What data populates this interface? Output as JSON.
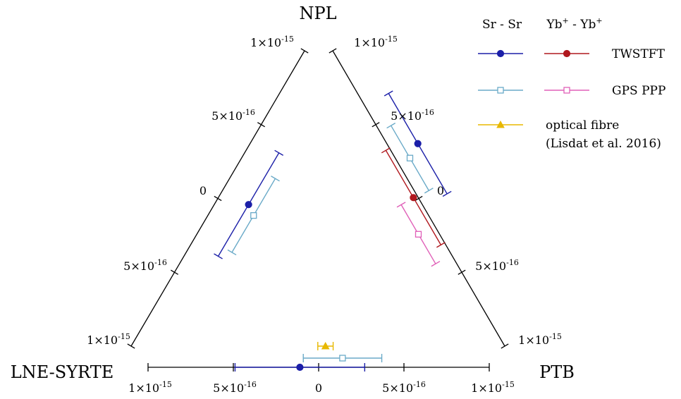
{
  "chart_data": {
    "type": "scatter",
    "title": "",
    "vertices": {
      "top": "NPL",
      "left": "LNE-SYRTE",
      "right": "PTB"
    },
    "axes": [
      {
        "name": "NPL-LNE-SYRTE",
        "range": [
          -1e-15,
          1e-15
        ],
        "tick_values": [
          -1e-15,
          -5e-16,
          0,
          5e-16,
          1e-15
        ],
        "tick_labels": [
          {
            "value": 1e-15,
            "mant": "1×10",
            "exp": "-15"
          },
          {
            "value": 5e-16,
            "mant": "5×10",
            "exp": "-16"
          },
          {
            "value": 0,
            "mant": "0",
            "exp": ""
          },
          {
            "value": -5e-16,
            "mant": "5×10",
            "exp": "-16"
          },
          {
            "value": -1e-15,
            "mant": "1×10",
            "exp": "-15"
          }
        ]
      },
      {
        "name": "NPL-PTB",
        "range": [
          -1e-15,
          1e-15
        ],
        "tick_values": [
          -1e-15,
          -5e-16,
          0,
          5e-16,
          1e-15
        ],
        "tick_labels": [
          {
            "value": 1e-15,
            "mant": "1×10",
            "exp": "-15"
          },
          {
            "value": 5e-16,
            "mant": "5×10",
            "exp": "-16"
          },
          {
            "value": 0,
            "mant": "0",
            "exp": ""
          },
          {
            "value": -5e-16,
            "mant": "5×10",
            "exp": "-16"
          },
          {
            "value": -1e-15,
            "mant": "1×10",
            "exp": "-15"
          }
        ]
      },
      {
        "name": "LNE-SYRTE-PTB",
        "range": [
          -1e-15,
          1e-15
        ],
        "tick_values": [
          -1e-15,
          -5e-16,
          0,
          5e-16,
          1e-15
        ],
        "tick_labels": [
          {
            "value": -1e-15,
            "mant": "1×10",
            "exp": "-15"
          },
          {
            "value": -5e-16,
            "mant": "5×10",
            "exp": "-16"
          },
          {
            "value": 0,
            "mant": "0",
            "exp": ""
          },
          {
            "value": 5e-16,
            "mant": "5×10",
            "exp": "-16"
          },
          {
            "value": 1e-15,
            "mant": "1×10",
            "exp": "-15"
          }
        ]
      }
    ],
    "series": [
      {
        "key": "srsr-twstft",
        "color": "#1b1fa8",
        "marker": "filled-circle",
        "points": [
          {
            "axis": "NPL-LNE-SYRTE",
            "value": 6e-17,
            "err": 3.5e-16
          },
          {
            "axis": "NPL-PTB",
            "value": -2.8e-16,
            "err": 3.4e-16
          },
          {
            "axis": "LNE-SYRTE-PTB",
            "value": -1.1e-16,
            "err": 3.8e-16
          }
        ]
      },
      {
        "key": "srsr-gpsppp",
        "color": "#6aaac8",
        "marker": "open-square",
        "points": [
          {
            "axis": "NPL-LNE-SYRTE",
            "value": 2e-17,
            "err": 2.5e-16
          },
          {
            "axis": "NPL-PTB",
            "value": -2.3e-16,
            "err": 2.2e-16
          },
          {
            "axis": "LNE-SYRTE-PTB",
            "value": 1.4e-16,
            "err": 2.3e-16
          }
        ]
      },
      {
        "key": "ybyb-twstft",
        "color": "#b0181e",
        "marker": "filled-circle",
        "points": [
          {
            "axis": "NPL-PTB",
            "value": -2e-17,
            "err": 3.2e-16
          }
        ]
      },
      {
        "key": "ybyb-gpsppp",
        "color": "#e060b8",
        "marker": "open-square",
        "points": [
          {
            "axis": "NPL-PTB",
            "value": 1.8e-16,
            "err": 2e-16
          }
        ]
      },
      {
        "key": "fibre",
        "color": "#e8b800",
        "marker": "filled-triangle",
        "points": [
          {
            "axis": "LNE-SYRTE-PTB",
            "value": 4e-17,
            "err": 4.5e-17
          }
        ]
      }
    ],
    "legend": {
      "placement": "top-right",
      "col_headers": [
        {
          "key": "srsr",
          "text": "Sr - Sr"
        },
        {
          "key": "ybyb",
          "base1": "Yb",
          "sup1": "+",
          "mid": " - Yb",
          "sup2": "+"
        }
      ],
      "rows": [
        {
          "label": "TWSTFT",
          "left": "srsr-twstft",
          "right": "ybyb-twstft"
        },
        {
          "label": "GPS PPP",
          "left": "srsr-gpsppp",
          "right": "ybyb-gpsppp"
        },
        {
          "label_lines": [
            "optical fibre",
            "(Lisdat et al. 2016)"
          ],
          "left": "fibre",
          "right": null
        }
      ]
    }
  }
}
